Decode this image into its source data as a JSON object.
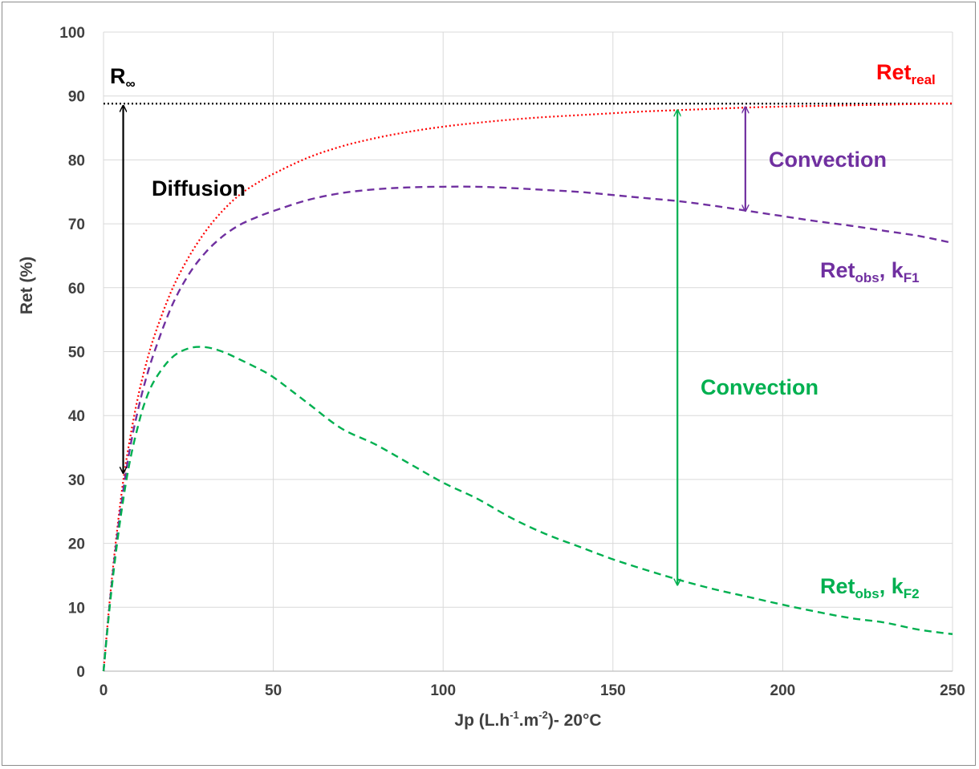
{
  "chart_data": {
    "type": "line",
    "xlabel": "Jp (L.h",
    "xlabel_sup1": "-1",
    "xlabel_mid": ".m",
    "xlabel_sup2": "-2",
    "xlabel_end": ")- 20°C",
    "ylabel": "Ret (%)",
    "xlim": [
      0,
      250
    ],
    "ylim": [
      0,
      100
    ],
    "x_ticks": [
      "0",
      "50",
      "100",
      "150",
      "200",
      "250"
    ],
    "y_ticks": [
      "0",
      "10",
      "20",
      "30",
      "40",
      "50",
      "60",
      "70",
      "80",
      "90",
      "100"
    ],
    "grid": true,
    "r_infinity": 88.8,
    "x": [
      0,
      2,
      4,
      6,
      8,
      10,
      12,
      15,
      20,
      25,
      30,
      35,
      40,
      45,
      50,
      60,
      70,
      80,
      90,
      100,
      110,
      120,
      130,
      140,
      150,
      160,
      170,
      180,
      190,
      200,
      210,
      220,
      230,
      240,
      250
    ],
    "series": [
      {
        "key": "ret_real",
        "values": [
          0,
          12.0,
          22.0,
          30.5,
          37.0,
          42.5,
          47.0,
          52.5,
          59.5,
          64.7,
          68.8,
          72.0,
          74.5,
          76.3,
          77.8,
          80.3,
          82.1,
          83.4,
          84.4,
          85.2,
          85.8,
          86.3,
          86.7,
          87.0,
          87.3,
          87.6,
          87.8,
          88.0,
          88.2,
          88.35,
          88.45,
          88.55,
          88.65,
          88.75,
          88.85
        ],
        "color": "#ff0000",
        "style": "dotted"
      },
      {
        "key": "ret_obs_kf1",
        "values": [
          0,
          11.5,
          21.0,
          29.0,
          35.5,
          40.5,
          44.8,
          50.0,
          57.0,
          62.0,
          65.5,
          68.0,
          69.8,
          71.0,
          72.0,
          73.7,
          74.8,
          75.4,
          75.7,
          75.8,
          75.8,
          75.6,
          75.3,
          75.0,
          74.5,
          74.0,
          73.5,
          72.8,
          72.0,
          71.2,
          70.4,
          69.7,
          68.9,
          68.1,
          67.0
        ],
        "color": "#7030a0",
        "style": "dashed"
      },
      {
        "key": "ret_obs_kf2",
        "values": [
          0,
          11.0,
          20.0,
          27.5,
          33.5,
          38.0,
          41.8,
          45.5,
          49.0,
          50.5,
          50.7,
          50.0,
          48.8,
          47.5,
          46.0,
          42.0,
          38.0,
          35.5,
          32.5,
          29.5,
          27.0,
          24.0,
          21.5,
          19.5,
          17.5,
          15.8,
          14.2,
          12.8,
          11.6,
          10.4,
          9.3,
          8.3,
          7.6,
          6.5,
          5.8
        ],
        "color": "#00b050",
        "style": "dashed"
      }
    ],
    "annotations": {
      "r_inf_label": "R",
      "r_inf_sub": "∞",
      "diffusion": "Diffusion",
      "convection_purple": "Convection",
      "convection_green": "Convection",
      "ret_real_main": "Ret",
      "ret_real_sub": "real",
      "kf1_main": "Ret",
      "kf1_sub": "obs",
      "kf1_comma": ", k",
      "kf1_sub2": "F1",
      "kf2_main": "Ret",
      "kf2_sub": "obs",
      "kf2_comma": ", k",
      "kf2_sub2": "F2"
    },
    "colors": {
      "black": "#000000",
      "red": "#ff0000",
      "purple": "#7030a0",
      "green": "#00b050",
      "grid": "#d9d9d9",
      "text": "#404040"
    }
  }
}
